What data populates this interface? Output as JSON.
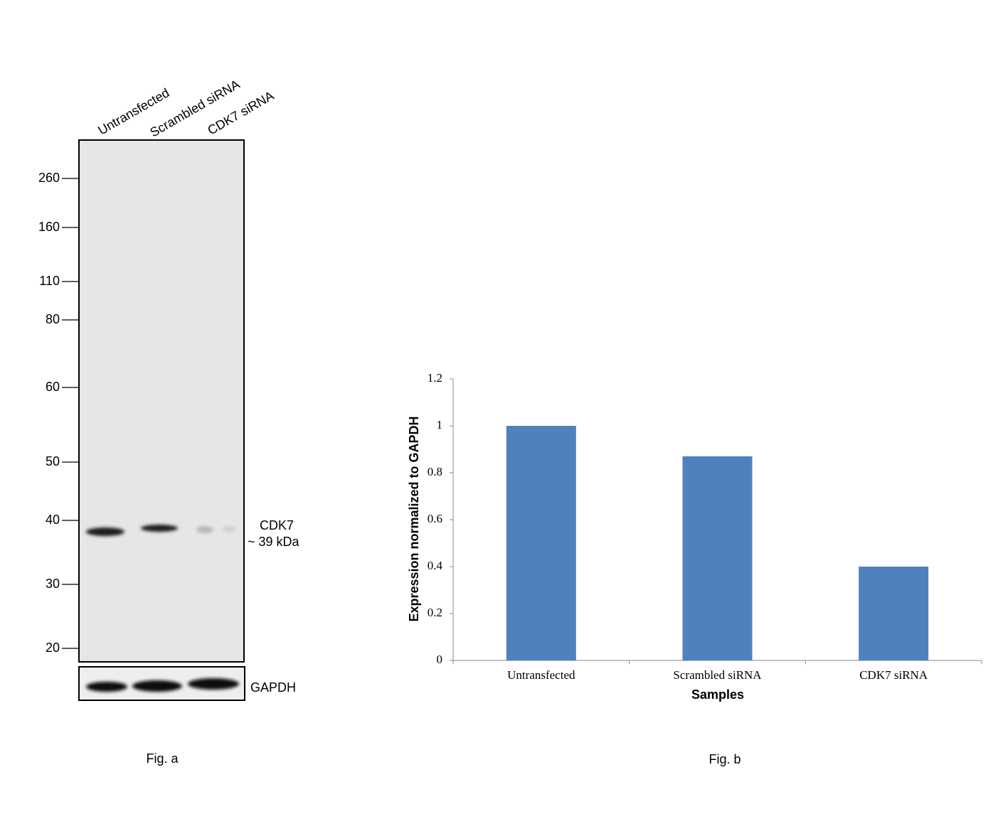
{
  "figure_a": {
    "lanes": [
      "Untransfected",
      "Scrambled siRNA",
      "CDK7 siRNA"
    ],
    "markers": [
      260,
      160,
      110,
      80,
      60,
      50,
      40,
      30,
      20
    ],
    "band_label": "CDK7",
    "band_size": "~ 39 kDa",
    "loading_control": "GAPDH",
    "caption": "Fig. a"
  },
  "chart_data": {
    "type": "bar",
    "categories": [
      "Untransfected",
      "Scrambled siRNA",
      "CDK7 siRNA"
    ],
    "values": [
      1,
      0.87,
      0.4
    ],
    "color": "#4f81bd",
    "ylim": [
      0,
      1.2
    ],
    "yticks": [
      0,
      0.2,
      0.4,
      0.6,
      0.8,
      1,
      1.2
    ],
    "y_label": "Expression normalized to GAPDH",
    "x_label": "Samples",
    "caption": "Fig. b"
  }
}
